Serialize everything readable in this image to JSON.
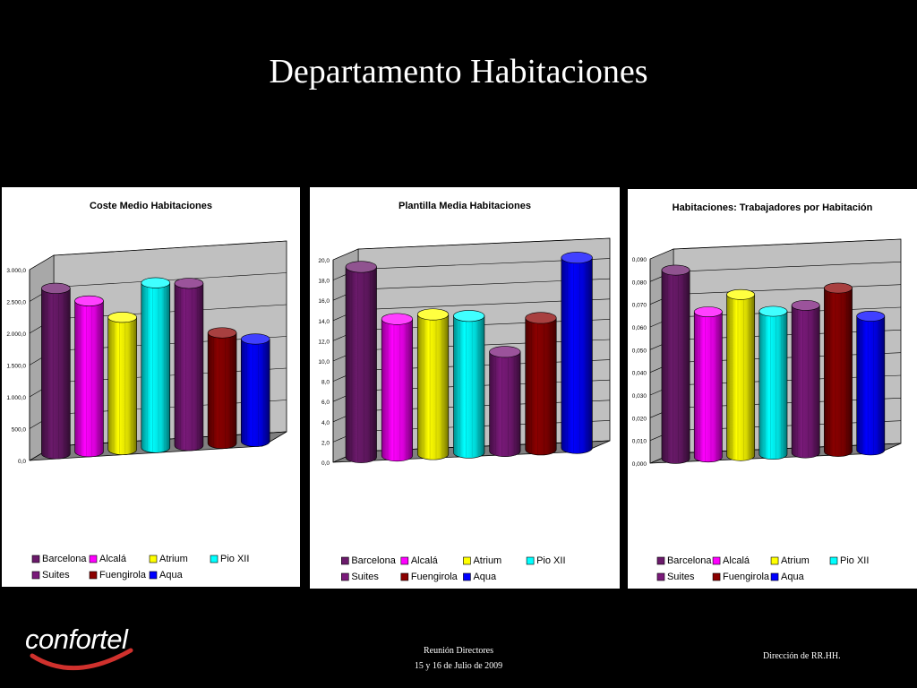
{
  "slide": {
    "title": "Departamento Habitaciones",
    "logo_text": "confortel",
    "footer_line1": "Reunión Directores",
    "footer_line2": "15 y 16 de Julio de 2009",
    "footer_right": "Dirección de RR.HH."
  },
  "chart_data": [
    {
      "type": "bar",
      "title": "Coste Medio Habitaciones",
      "categories": [
        "Barcelona",
        "Alcalá",
        "Atrium",
        "Pio XII",
        "Suites",
        "Fuengirola",
        "Aqua"
      ],
      "values": [
        2600,
        2370,
        2080,
        2590,
        2550,
        1740,
        1610
      ],
      "ylim": [
        0,
        3000
      ],
      "yticks": [
        "0,0",
        "500,0",
        "1.000,0",
        "1.500,0",
        "2.000,0",
        "2.500,0",
        "3.000,0"
      ],
      "grid": true,
      "legend": "bottom"
    },
    {
      "type": "bar",
      "title": "Plantilla Media Habitaciones",
      "categories": [
        "Barcelona",
        "Alcalá",
        "Atrium",
        "Pio XII",
        "Suites",
        "Fuengirola",
        "Aqua"
      ],
      "values": [
        18.8,
        13.5,
        13.8,
        13.5,
        9.8,
        13.0,
        18.8
      ],
      "ylim": [
        0,
        20
      ],
      "yticks": [
        "0,0",
        "2,0",
        "4,0",
        "6,0",
        "8,0",
        "10,0",
        "12,0",
        "14,0",
        "16,0",
        "18,0",
        "20,0"
      ],
      "grid": true,
      "legend": "bottom"
    },
    {
      "type": "bar",
      "title": "Habitaciones: Trabajadores por Habitación",
      "categories": [
        "Barcelona",
        "Alcalá",
        "Atrium",
        "Pio XII",
        "Suites",
        "Fuengirola",
        "Aqua"
      ],
      "values": [
        0.083,
        0.064,
        0.071,
        0.063,
        0.065,
        0.072,
        0.059
      ],
      "ylim": [
        0,
        0.09
      ],
      "yticks": [
        "0,000",
        "0,010",
        "0,020",
        "0,030",
        "0,040",
        "0,050",
        "0,060",
        "0,070",
        "0,080",
        "0,090"
      ],
      "grid": true,
      "legend": "bottom"
    }
  ],
  "colors": {
    "Barcelona": "#6b1a6b",
    "Alcalá": "#ff00ff",
    "Atrium": "#ffff00",
    "Pio XII": "#00ffff",
    "Suites": "#7a1a7a",
    "Fuengirola": "#8b0000",
    "Aqua": "#0000ff"
  }
}
